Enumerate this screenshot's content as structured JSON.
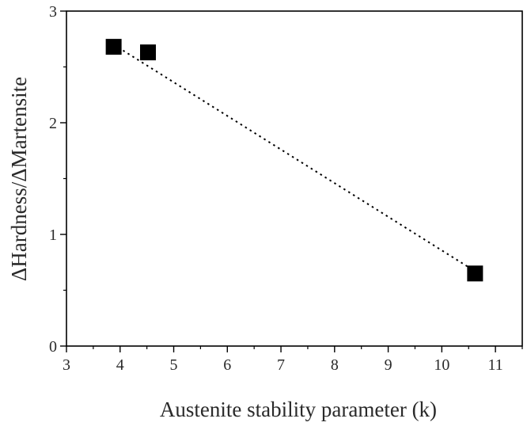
{
  "chart_data": {
    "type": "scatter",
    "title": "",
    "xlabel": "Austenite stability parameter (k)",
    "ylabel": "ΔHardness/ΔMartensite",
    "xlim": [
      3,
      11.5
    ],
    "ylim": [
      0,
      3
    ],
    "x_ticks": [
      3,
      4,
      5,
      6,
      7,
      8,
      9,
      10,
      11
    ],
    "y_ticks": [
      0,
      1,
      2,
      3
    ],
    "x_tick_labels": [
      "3",
      "4",
      "5",
      "6",
      "7",
      "8",
      "9",
      "10",
      "11"
    ],
    "y_tick_labels": [
      "0",
      "1",
      "2",
      "3"
    ],
    "grid": false,
    "legend": "none",
    "series": [
      {
        "marker": "square",
        "color": "#000000",
        "x": [
          3.88,
          4.52,
          10.62
        ],
        "y": [
          2.68,
          2.63,
          0.65
        ]
      }
    ],
    "trendline": {
      "style": "dotted",
      "color": "#000000",
      "x": [
        3.88,
        10.62
      ],
      "y": [
        2.7,
        0.67
      ]
    }
  }
}
